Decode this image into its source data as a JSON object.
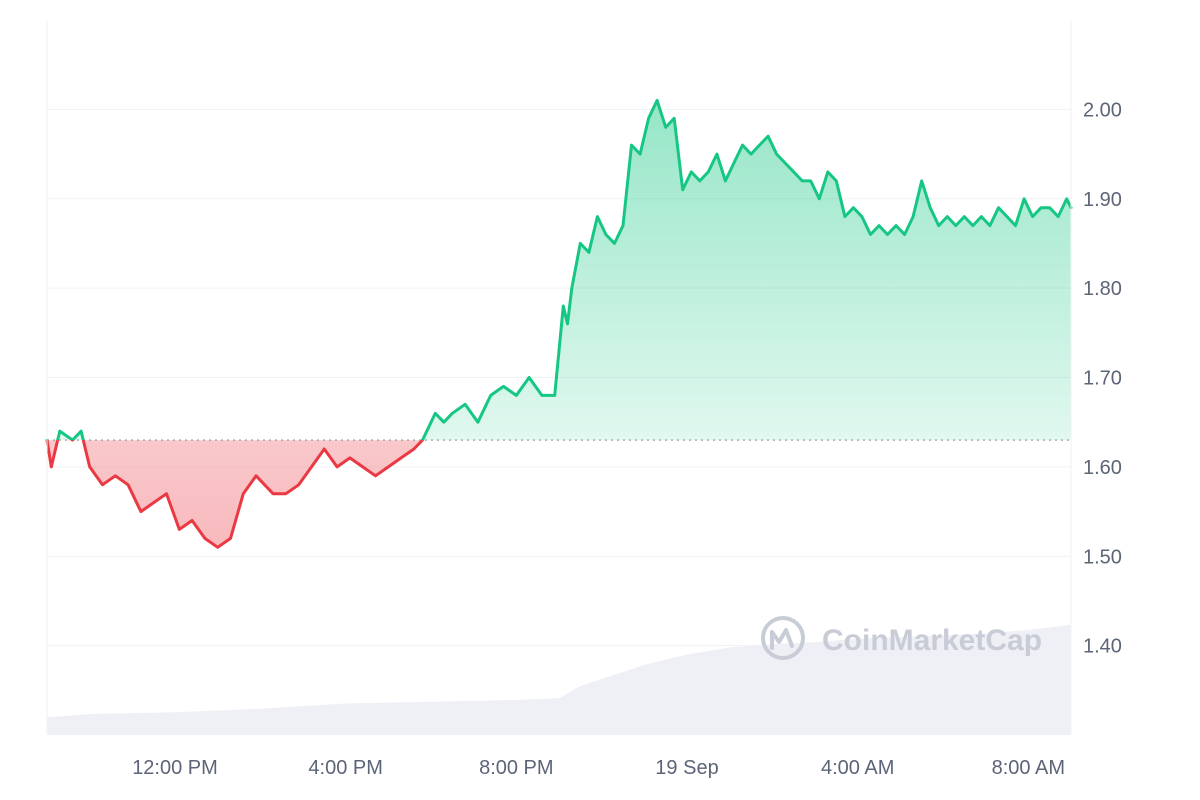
{
  "watermark": "CoinMarketCap",
  "chart_data": {
    "type": "area",
    "title": "",
    "xlabel": "",
    "ylabel": "",
    "ylim": [
      1.3,
      2.1
    ],
    "y_ticks": [
      "1.40",
      "1.50",
      "1.60",
      "1.70",
      "1.80",
      "1.90",
      "2.00"
    ],
    "x_ticks": [
      "12:00 PM",
      "4:00 PM",
      "8:00 PM",
      "19 Sep",
      "4:00 AM",
      "8:00 AM"
    ],
    "x_ticks_hours": [
      12,
      16,
      20,
      24,
      28,
      32
    ],
    "x_range_hours": [
      9.0,
      33.0
    ],
    "baseline": 1.63,
    "grid": true,
    "colors": {
      "up": "#16c784",
      "down": "#ea3943",
      "volume": "#eef0f5",
      "grid": "#eff2f5",
      "axis_text": "#5c6577"
    },
    "series": [
      {
        "x_hours": [
          9.0,
          9.1,
          9.3,
          9.6,
          9.8,
          10.0,
          10.3,
          10.6,
          10.9,
          11.2,
          11.5,
          11.8,
          12.1,
          12.4,
          12.7,
          13.0,
          13.3,
          13.6,
          13.9,
          14.1,
          14.3,
          14.6,
          14.9,
          15.2,
          15.5,
          15.8,
          16.1,
          16.4,
          16.7,
          17.0,
          17.3,
          17.6,
          17.8,
          18.1,
          18.3,
          18.5,
          18.8,
          19.1,
          19.4,
          19.7,
          20.0,
          20.3,
          20.6,
          20.9,
          21.1,
          21.2,
          21.3,
          21.5,
          21.7,
          21.9,
          22.1,
          22.3,
          22.5,
          22.7,
          22.9,
          23.1,
          23.3,
          23.5,
          23.7,
          23.9,
          24.1,
          24.3,
          24.5,
          24.7,
          24.9,
          25.1,
          25.3,
          25.5,
          25.7,
          25.9,
          26.1,
          26.3,
          26.5,
          26.7,
          26.9,
          27.1,
          27.3,
          27.5,
          27.7,
          27.9,
          28.1,
          28.3,
          28.5,
          28.7,
          28.9,
          29.1,
          29.3,
          29.5,
          29.7,
          29.9,
          30.1,
          30.3,
          30.5,
          30.7,
          30.9,
          31.1,
          31.3,
          31.5,
          31.7,
          31.9,
          32.1,
          32.3,
          32.5,
          32.7,
          32.9,
          33.0
        ],
        "values": [
          1.63,
          1.6,
          1.64,
          1.63,
          1.64,
          1.6,
          1.58,
          1.59,
          1.58,
          1.55,
          1.56,
          1.57,
          1.53,
          1.54,
          1.52,
          1.51,
          1.52,
          1.57,
          1.59,
          1.58,
          1.57,
          1.57,
          1.58,
          1.6,
          1.62,
          1.6,
          1.61,
          1.6,
          1.59,
          1.6,
          1.61,
          1.62,
          1.63,
          1.66,
          1.65,
          1.66,
          1.67,
          1.65,
          1.68,
          1.69,
          1.68,
          1.7,
          1.68,
          1.68,
          1.78,
          1.76,
          1.8,
          1.85,
          1.84,
          1.88,
          1.86,
          1.85,
          1.87,
          1.96,
          1.95,
          1.99,
          2.01,
          1.98,
          1.99,
          1.91,
          1.93,
          1.92,
          1.93,
          1.95,
          1.92,
          1.94,
          1.96,
          1.95,
          1.96,
          1.97,
          1.95,
          1.94,
          1.93,
          1.92,
          1.92,
          1.9,
          1.93,
          1.92,
          1.88,
          1.89,
          1.88,
          1.86,
          1.87,
          1.86,
          1.87,
          1.86,
          1.88,
          1.92,
          1.89,
          1.87,
          1.88,
          1.87,
          1.88,
          1.87,
          1.88,
          1.87,
          1.89,
          1.88,
          1.87,
          1.9,
          1.88,
          1.89,
          1.89,
          1.88,
          1.9,
          1.89
        ]
      }
    ],
    "volume": {
      "x_hours": [
        9.0,
        10.0,
        12.0,
        14.0,
        16.0,
        18.0,
        20.0,
        21.0,
        21.5,
        22.0,
        23.0,
        24.0,
        25.0,
        26.0,
        27.0,
        28.0,
        29.0,
        30.0,
        31.0,
        32.0,
        33.0
      ],
      "values": [
        0.1,
        0.12,
        0.13,
        0.15,
        0.18,
        0.19,
        0.2,
        0.21,
        0.28,
        0.32,
        0.4,
        0.46,
        0.5,
        0.52,
        0.53,
        0.55,
        0.56,
        0.57,
        0.58,
        0.6,
        0.63
      ]
    }
  }
}
